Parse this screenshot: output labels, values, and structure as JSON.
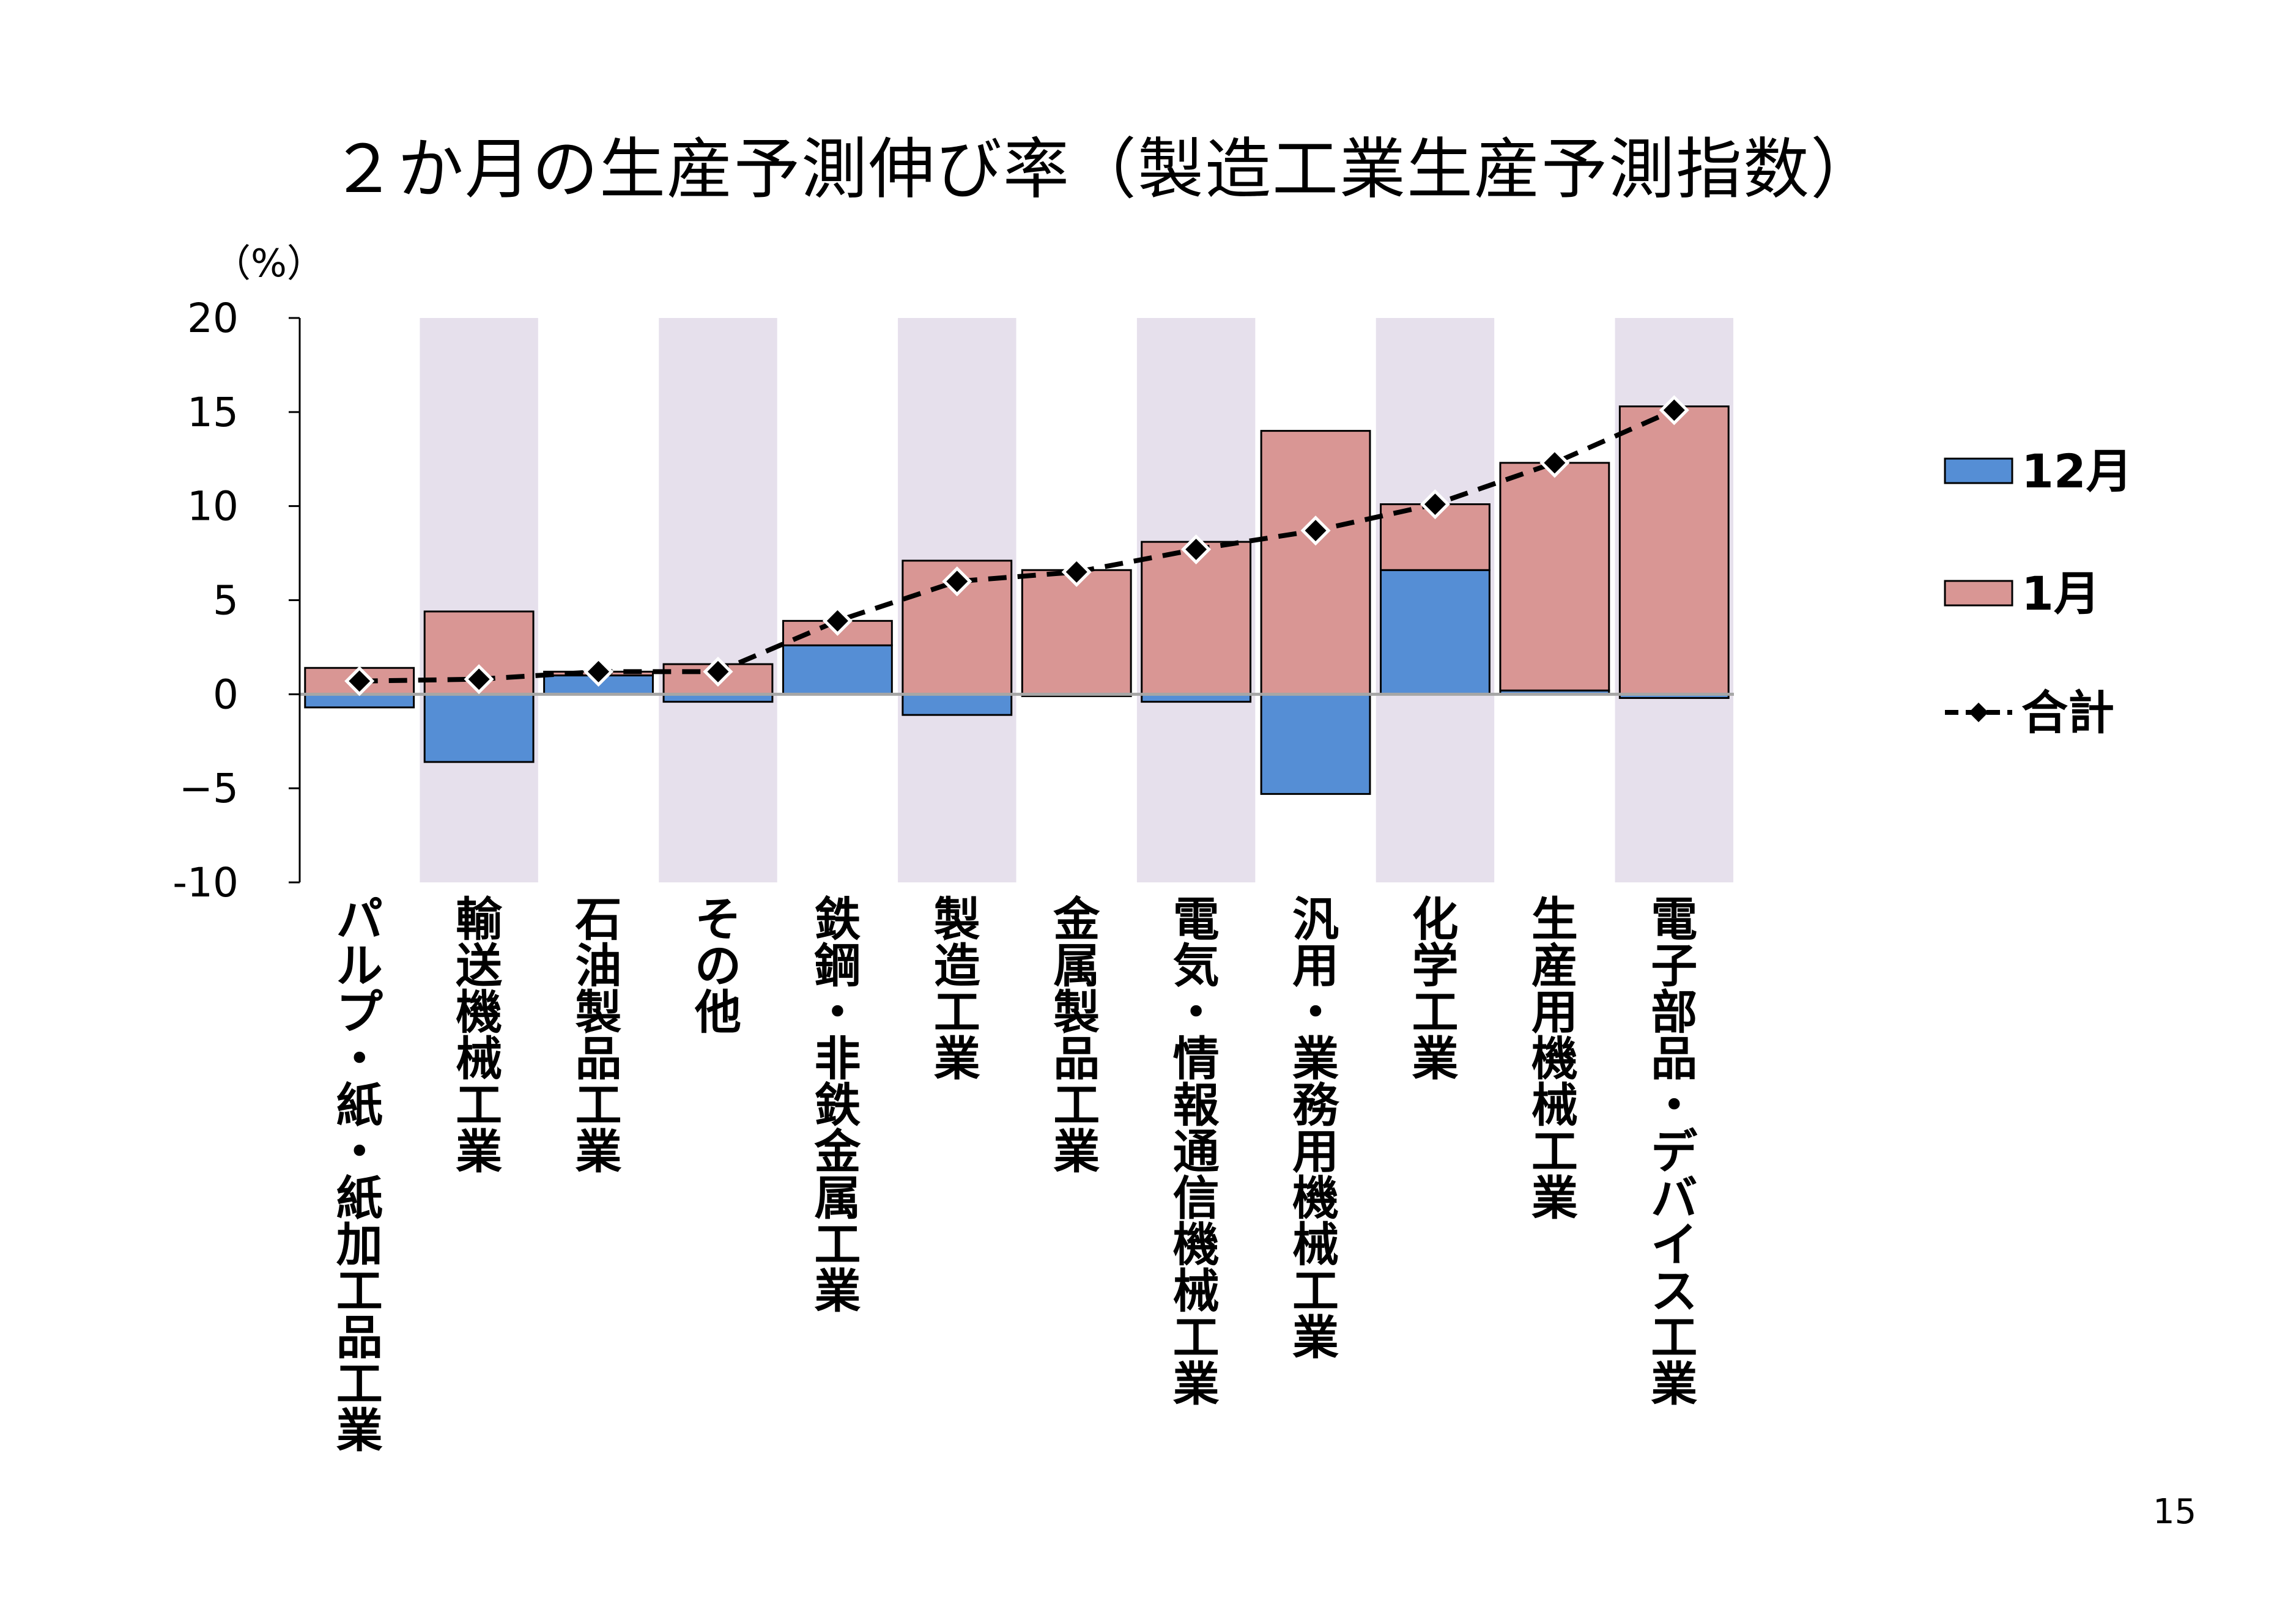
{
  "page": {
    "title": "２か月の生産予測伸び率（製造工業生産予測指数）",
    "unit": "（%）",
    "page_number": "15"
  },
  "chart_data": {
    "type": "bar",
    "stacked": true,
    "title": "２か月の生産予測伸び率（製造工業生産予測指数）",
    "ylabel": "（%）",
    "ylim": [
      -10,
      20
    ],
    "yticks": [
      "20",
      "15",
      "10",
      "5",
      "0",
      "−5",
      "-10"
    ],
    "ytick_values": [
      20,
      15,
      10,
      5,
      0,
      -5,
      -10
    ],
    "categories": [
      "パルプ・紙・紙加工品工業",
      "輸送機械工業",
      "石油製品工業",
      "その他",
      "鉄鋼・非鉄金属工業",
      "製造工業",
      "金属製品工業",
      "電気・情報通信機械工業",
      "汎用・業務用機械工業",
      "化学工業",
      "生産用機械工業",
      "電子部品・デバイス工業"
    ],
    "shaded_categories": [
      1,
      3,
      5,
      7,
      9,
      11
    ],
    "series": [
      {
        "name": "12月",
        "type": "bar",
        "color": "#558ed5",
        "values": [
          -0.7,
          -3.6,
          1.0,
          -0.4,
          2.6,
          -1.1,
          -0.1,
          -0.4,
          -5.3,
          6.6,
          0.2,
          -0.2
        ]
      },
      {
        "name": "1月",
        "type": "bar",
        "color": "#d99694",
        "values": [
          1.4,
          4.4,
          0.2,
          1.6,
          1.3,
          7.1,
          6.6,
          8.1,
          14.0,
          3.5,
          12.1,
          15.3
        ]
      },
      {
        "name": "合計",
        "type": "line",
        "color": "#000000",
        "values": [
          0.7,
          0.8,
          1.2,
          1.2,
          3.9,
          6.0,
          6.5,
          7.7,
          8.7,
          10.1,
          12.3,
          15.1
        ]
      }
    ],
    "legend": {
      "position": "right",
      "items": [
        {
          "label": "12月",
          "kind": "box",
          "color": "#558ed5"
        },
        {
          "label": "1月",
          "kind": "box",
          "color": "#d99694"
        },
        {
          "label": "合計",
          "kind": "line",
          "color": "#000000"
        }
      ]
    },
    "colors": {
      "shade": "#e6e0ec",
      "bar_border": "#000000",
      "zero_line": "#a6a6a6"
    }
  }
}
